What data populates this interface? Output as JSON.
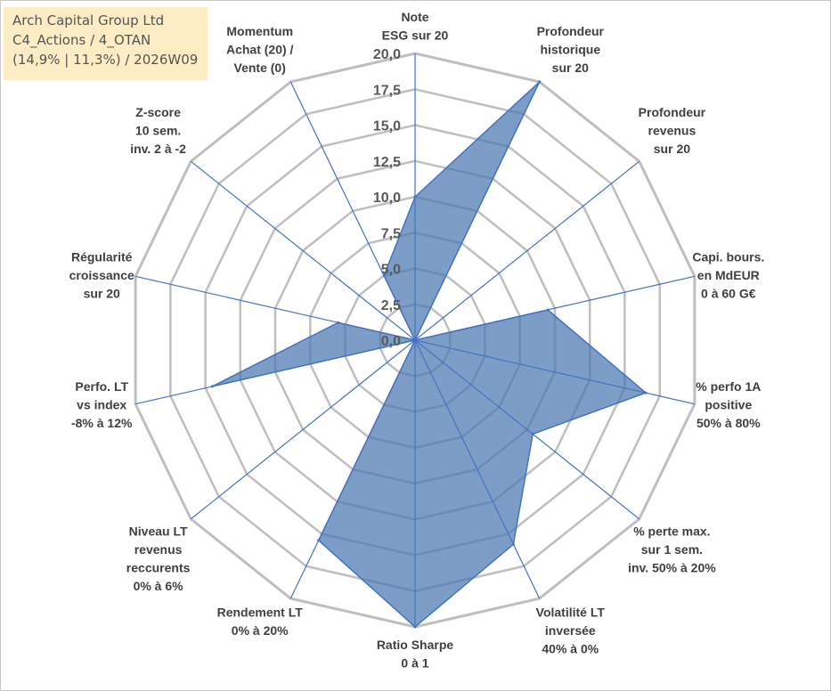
{
  "info_box": {
    "line1": "Arch Capital Group Ltd",
    "line2": "C4_Actions / 4_OTAN",
    "line3": "(14,9% | 11,3%) / 2026W09"
  },
  "chart_data": {
    "type": "radar",
    "title": "",
    "range": [
      0,
      20
    ],
    "tick_step": 2.5,
    "tick_labels": [
      "0,0",
      "2,5",
      "5,0",
      "7,5",
      "10,0",
      "12,5",
      "15,0",
      "17,5",
      "20,0"
    ],
    "grid": true,
    "axes": [
      {
        "label": [
          "Note",
          "ESG sur 20"
        ]
      },
      {
        "label": [
          "Profondeur",
          "historique",
          "sur 20"
        ]
      },
      {
        "label": [
          "Profondeur",
          "revenus",
          "sur 20"
        ]
      },
      {
        "label": [
          "Capi. bours.",
          "en MdEUR",
          "0 à 60 G€"
        ]
      },
      {
        "label": [
          "% perfo 1A",
          "positive",
          "50% à 80%"
        ]
      },
      {
        "label": [
          "% perte max.",
          "sur 1 sem.",
          "inv. 50% à 20%"
        ]
      },
      {
        "label": [
          "Volatilité LT",
          "inversée",
          "40% à 0%"
        ]
      },
      {
        "label": [
          "Ratio Sharpe",
          "0 à 1"
        ]
      },
      {
        "label": [
          "Rendement LT",
          "0% à 20%"
        ]
      },
      {
        "label": [
          "Niveau LT",
          "revenus",
          "reccurents",
          "0% à 6%"
        ]
      },
      {
        "label": [
          "Perfo. LT",
          "vs index",
          "-8% à 12%"
        ]
      },
      {
        "label": [
          "Régularité",
          "croissance",
          "sur 20"
        ]
      },
      {
        "label": [
          "Z-score",
          "10 sem.",
          "inv. 2 à -2"
        ]
      },
      {
        "label": [
          "Momentum",
          "Achat (20) /",
          "Vente (0)"
        ]
      }
    ],
    "series": [
      {
        "values": [
          10.0,
          20.0,
          0.0,
          9.5,
          16.5,
          10.5,
          15.8,
          20.0,
          15.5,
          0.0,
          14.5,
          5.5,
          0.0,
          5.0
        ],
        "fill": "#4a78b0",
        "fill_opacity": 0.72,
        "stroke": "#4472c4"
      }
    ],
    "colors": {
      "grid": "#bfbfbf",
      "spokes": "#4472c4"
    }
  }
}
